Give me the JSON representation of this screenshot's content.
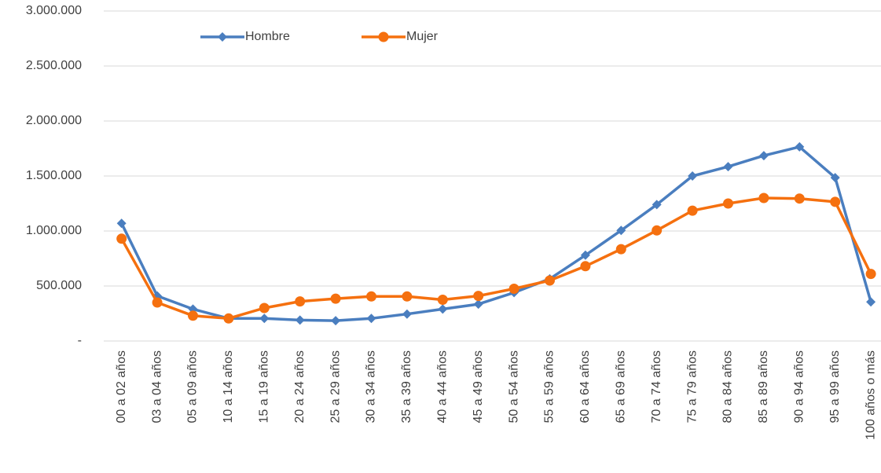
{
  "chart_data": {
    "type": "line",
    "categories": [
      "00 a 02 años",
      "03 a 04 años",
      "05 a 09 años",
      "10 a 14 años",
      "15 a 19 años",
      "20 a 24 años",
      "25 a 29 años",
      "30 a 34 años",
      "35 a 39 años",
      "40 a 44 años",
      "45 a 49 años",
      "50 a 54 años",
      "55 a 59 años",
      "60 a 64 años",
      "65 a 69 años",
      "70 a 74 años",
      "75 a 79 años",
      "80 a 84 años",
      "85 a 89 años",
      "90 a 94 años",
      "95 a 99 años",
      "100 años o más"
    ],
    "series": [
      {
        "name": "Hombre",
        "color": "#4a7ebf",
        "marker": "diamond",
        "values": [
          1070000,
          410000,
          290000,
          205000,
          205000,
          190000,
          185000,
          205000,
          245000,
          290000,
          335000,
          440000,
          565000,
          780000,
          1005000,
          1240000,
          1500000,
          1585000,
          1685000,
          1765000,
          1485000,
          355000
        ]
      },
      {
        "name": "Mujer",
        "color": "#f5700f",
        "marker": "circle",
        "values": [
          930000,
          350000,
          230000,
          205000,
          300000,
          360000,
          385000,
          405000,
          405000,
          375000,
          410000,
          475000,
          550000,
          680000,
          835000,
          1005000,
          1185000,
          1250000,
          1300000,
          1295000,
          1265000,
          610000
        ]
      }
    ],
    "ylim": [
      0,
      3000000
    ],
    "yticks": [
      {
        "value": 0,
        "label": "-"
      },
      {
        "value": 500000,
        "label": "500.000"
      },
      {
        "value": 1000000,
        "label": "1.000.000"
      },
      {
        "value": 1500000,
        "label": "1.500.000"
      },
      {
        "value": 2000000,
        "label": "2.000.000"
      },
      {
        "value": 2500000,
        "label": "2.500.000"
      },
      {
        "value": 3000000,
        "label": "3.000.000"
      }
    ],
    "grid": true,
    "legend": "top-left"
  }
}
